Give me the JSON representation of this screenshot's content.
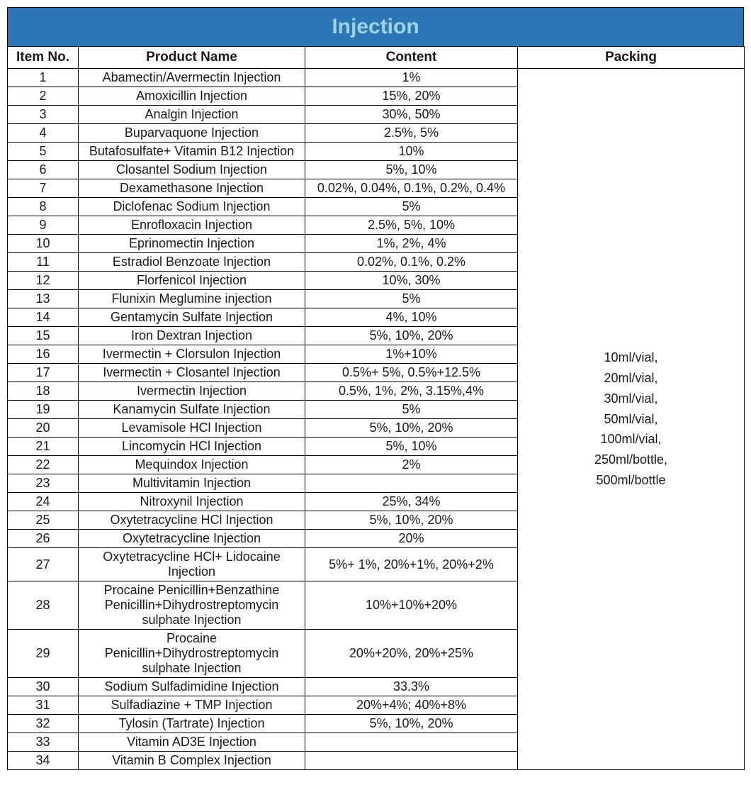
{
  "title": "Injection",
  "title_bg_color": "#2e75b6",
  "title_text_color": "#9cd3e6",
  "border_color": "#000000",
  "background_color": "#ffffff",
  "font_family": "Arial",
  "title_fontsize": 30,
  "header_fontsize": 19,
  "cell_fontsize": 18,
  "columns": {
    "itemno": "Item No.",
    "product": "Product Name",
    "content": "Content",
    "packing": "Packing"
  },
  "column_widths": {
    "itemno": 100,
    "product": 320,
    "content": 300,
    "packing": 320
  },
  "packing_lines": [
    "10ml/vial,",
    "20ml/vial,",
    "30ml/vial,",
    "50ml/vial,",
    "100ml/vial,",
    "250ml/bottle,",
    "500ml/bottle"
  ],
  "rows": [
    {
      "no": "1",
      "product": "Abamectin/Avermectin Injection",
      "content": "1%"
    },
    {
      "no": "2",
      "product": "Amoxicillin Injection",
      "content": "15%, 20%"
    },
    {
      "no": "3",
      "product": "Analgin Injection",
      "content": "30%, 50%"
    },
    {
      "no": "4",
      "product": "Buparvaquone Injection",
      "content": "2.5%, 5%"
    },
    {
      "no": "5",
      "product": "Butafosulfate+ Vitamin B12 Injection",
      "content": "10%"
    },
    {
      "no": "6",
      "product": "Closantel Sodium Injection",
      "content": "5%, 10%"
    },
    {
      "no": "7",
      "product": "Dexamethasone Injection",
      "content": "0.02%, 0.04%, 0.1%, 0.2%, 0.4%"
    },
    {
      "no": "8",
      "product": "Diclofenac Sodium Injection",
      "content": "5%"
    },
    {
      "no": "9",
      "product": "Enrofloxacin Injection",
      "content": "2.5%, 5%, 10%"
    },
    {
      "no": "10",
      "product": "Eprinomectin Injection",
      "content": "1%, 2%, 4%"
    },
    {
      "no": "11",
      "product": "Estradiol Benzoate Injection",
      "content": "0.02%, 0.1%, 0.2%"
    },
    {
      "no": "12",
      "product": "Florfenicol Injection",
      "content": "10%, 30%"
    },
    {
      "no": "13",
      "product": "Flunixin Meglumine injection",
      "content": "5%"
    },
    {
      "no": "14",
      "product": "Gentamycin Sulfate Injection",
      "content": "4%, 10%"
    },
    {
      "no": "15",
      "product": "Iron Dextran Injection",
      "content": "5%, 10%, 20%"
    },
    {
      "no": "16",
      "product": "Ivermectin + Clorsulon Injection",
      "content": "1%+10%"
    },
    {
      "no": "17",
      "product": "Ivermectin + Closantel Injection",
      "content": "0.5%+ 5%, 0.5%+12.5%"
    },
    {
      "no": "18",
      "product": "Ivermectin Injection",
      "content": "0.5%, 1%, 2%, 3.15%,4%"
    },
    {
      "no": "19",
      "product": "Kanamycin Sulfate Injection",
      "content": "5%"
    },
    {
      "no": "20",
      "product": "Levamisole HCl Injection",
      "content": "5%, 10%, 20%"
    },
    {
      "no": "21",
      "product": "Lincomycin HCl Injection",
      "content": "5%, 10%"
    },
    {
      "no": "22",
      "product": "Mequindox Injection",
      "content": "2%"
    },
    {
      "no": "23",
      "product": "Multivitamin Injection",
      "content": ""
    },
    {
      "no": "24",
      "product": "Nitroxynil Injection",
      "content": "25%, 34%"
    },
    {
      "no": "25",
      "product": "Oxytetracycline HCl Injection",
      "content": "5%, 10%, 20%"
    },
    {
      "no": "26",
      "product": "Oxytetracycline Injection",
      "content": "20%"
    },
    {
      "no": "27",
      "product": "Oxytetracycline HCl+ Lidocaine Injection",
      "content": "5%+ 1%, 20%+1%, 20%+2%"
    },
    {
      "no": "28",
      "product": "Procaine Penicillin+Benzathine Penicillin+Dihydrostreptomycin sulphate Injection",
      "content": "10%+10%+20%"
    },
    {
      "no": "29",
      "product": "Procaine Penicillin+Dihydrostreptomycin sulphate Injection",
      "content": "20%+20%, 20%+25%"
    },
    {
      "no": "30",
      "product": "Sodium Sulfadimidine Injection",
      "content": "33.3%"
    },
    {
      "no": "31",
      "product": "Sulfadiazine + TMP Injection",
      "content": "20%+4%; 40%+8%"
    },
    {
      "no": "32",
      "product": "Tylosin (Tartrate) Injection",
      "content": "5%, 10%, 20%"
    },
    {
      "no": "33",
      "product": "Vitamin AD3E Injection",
      "content": ""
    },
    {
      "no": "34",
      "product": "Vitamin B Complex Injection",
      "content": ""
    }
  ]
}
